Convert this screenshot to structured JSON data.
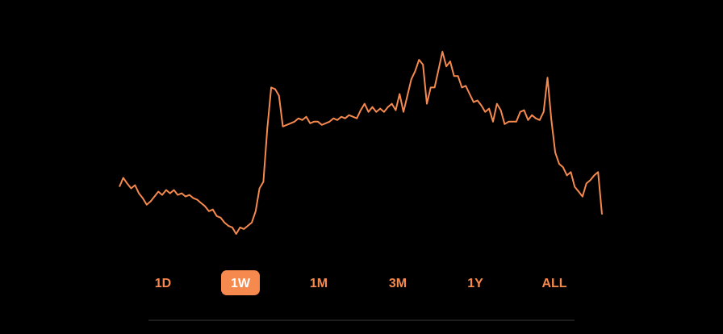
{
  "chart_data": {
    "type": "line",
    "color": "#f5894e",
    "values": [
      68,
      79,
      72,
      66,
      70,
      60,
      54,
      46,
      50,
      56,
      62,
      58,
      64,
      60,
      64,
      58,
      60,
      56,
      58,
      54,
      52,
      48,
      44,
      38,
      40,
      32,
      30,
      24,
      20,
      18,
      10,
      18,
      16,
      20,
      24,
      38,
      66,
      74,
      140,
      190,
      188,
      180,
      142,
      144,
      146,
      148,
      152,
      150,
      154,
      146,
      148,
      148,
      144,
      146,
      148,
      152,
      150,
      154,
      152,
      156,
      154,
      152,
      162,
      170,
      160,
      166,
      160,
      164,
      160,
      166,
      170,
      162,
      182,
      160,
      180,
      200,
      210,
      224,
      218,
      170,
      190,
      190,
      212,
      234,
      216,
      222,
      204,
      204,
      190,
      192,
      182,
      172,
      174,
      168,
      160,
      164,
      148,
      170,
      162,
      145,
      148,
      148,
      148,
      160,
      162,
      150,
      156,
      152,
      150,
      160,
      202,
      150,
      110,
      96,
      92,
      82,
      86,
      68,
      62,
      56,
      72,
      76,
      82,
      86,
      34
    ]
  },
  "range_options": [
    "1D",
    "1W",
    "1M",
    "3M",
    "1Y",
    "ALL"
  ],
  "selected_range": "1W"
}
